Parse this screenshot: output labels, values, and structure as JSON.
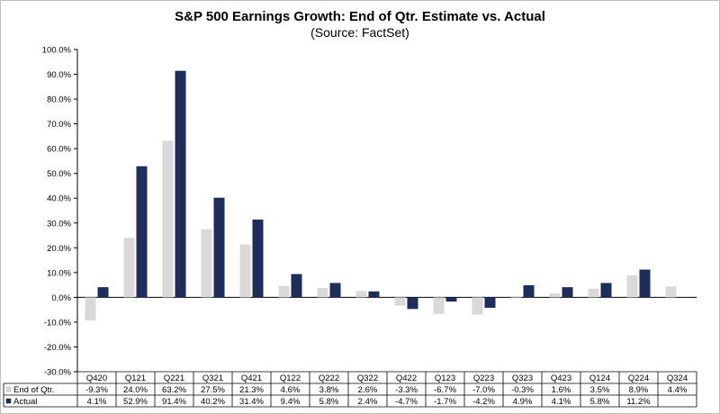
{
  "chart_data": {
    "type": "bar",
    "title": "S&P 500 Earnings Growth: End of Qtr. Estimate vs. Actual",
    "subtitle": "(Source: FactSet)",
    "categories": [
      "Q420",
      "Q121",
      "Q221",
      "Q321",
      "Q421",
      "Q122",
      "Q222",
      "Q322",
      "Q422",
      "Q123",
      "Q223",
      "Q323",
      "Q423",
      "Q124",
      "Q224",
      "Q324"
    ],
    "series": [
      {
        "name": "End of Qtr.",
        "color": "#d9d9d9",
        "values": [
          -9.3,
          24.0,
          63.2,
          27.5,
          21.3,
          4.6,
          3.8,
          2.6,
          -3.3,
          -6.7,
          -7.0,
          -0.3,
          1.6,
          3.5,
          8.9,
          4.4
        ],
        "labels": [
          "-9.3%",
          "24.0%",
          "63.2%",
          "27.5%",
          "21.3%",
          "4.6%",
          "3.8%",
          "2.6%",
          "-3.3%",
          "-6.7%",
          "-7.0%",
          "-0.3%",
          "1.6%",
          "3.5%",
          "8.9%",
          "4.4%"
        ]
      },
      {
        "name": "Actual",
        "color": "#1f2d5c",
        "values": [
          4.1,
          52.9,
          91.4,
          40.2,
          31.4,
          9.4,
          5.8,
          2.4,
          -4.7,
          -1.7,
          -4.2,
          4.9,
          4.1,
          5.8,
          11.2,
          null
        ],
        "labels": [
          "4.1%",
          "52.9%",
          "91.4%",
          "40.2%",
          "31.4%",
          "9.4%",
          "5.8%",
          "2.4%",
          "-4.7%",
          "-1.7%",
          "-4.2%",
          "4.9%",
          "4.1%",
          "5.8%",
          "11.2%",
          ""
        ]
      }
    ],
    "y_ticks": [
      "-30.0%",
      "-20.0%",
      "-10.0%",
      "0.0%",
      "10.0%",
      "20.0%",
      "30.0%",
      "40.0%",
      "50.0%",
      "60.0%",
      "70.0%",
      "80.0%",
      "90.0%",
      "100.0%"
    ],
    "ylim": [
      -30,
      100
    ],
    "grid": false,
    "legend": "data-table"
  }
}
